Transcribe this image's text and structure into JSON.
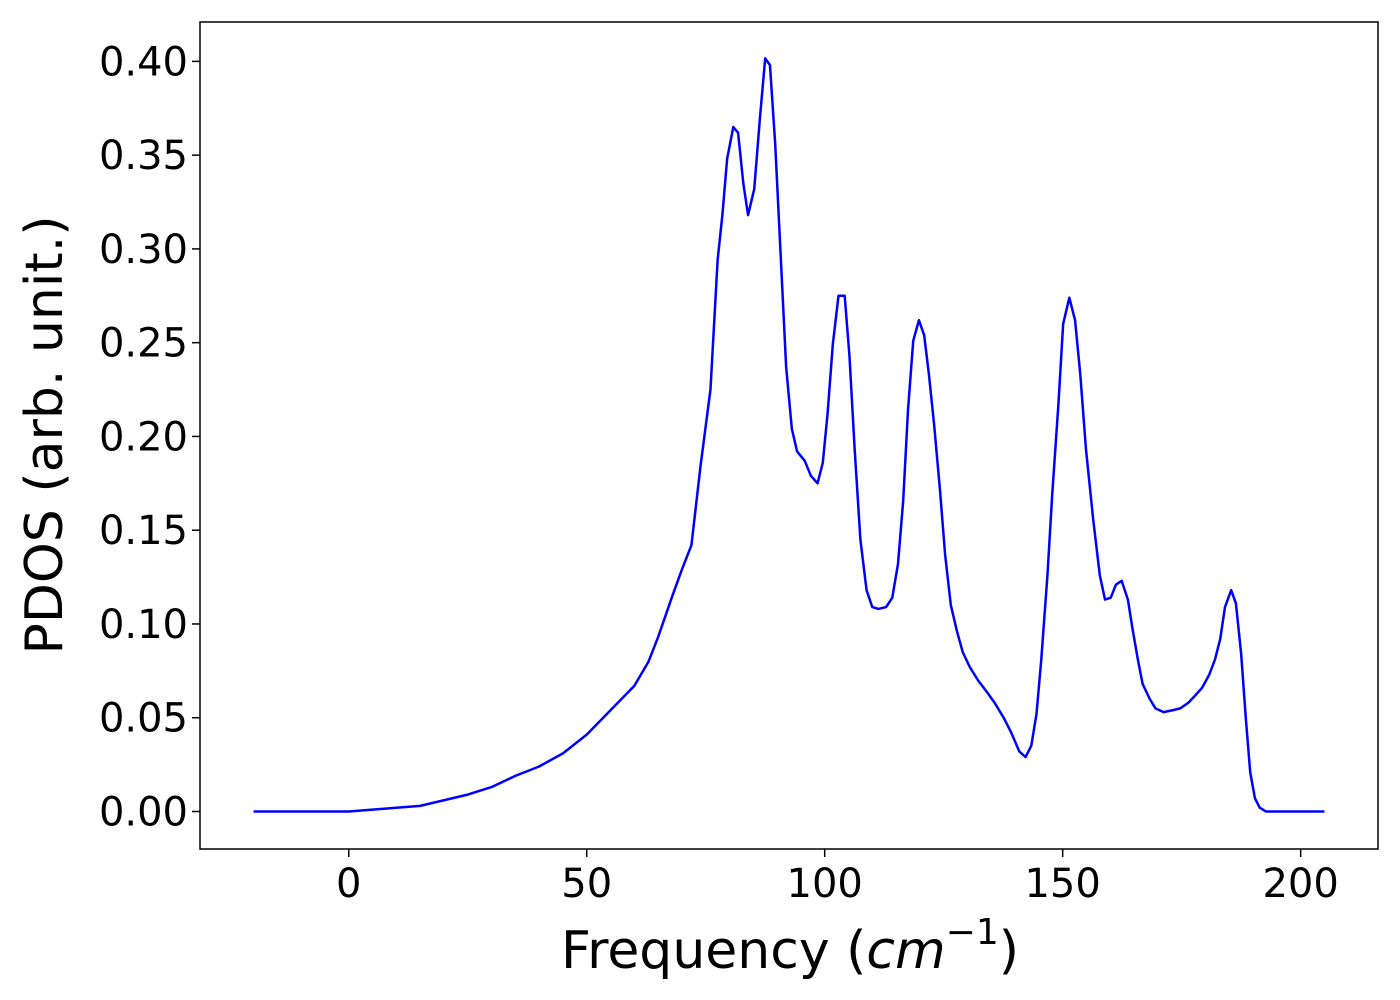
{
  "chart_data": {
    "type": "line",
    "x_label": [
      "Frequency (",
      "cm",
      "−1",
      ")"
    ],
    "y_label": "PDOS (arb. unit.)",
    "x": [
      -20,
      0,
      5,
      10,
      15,
      20,
      25,
      30,
      35,
      40,
      45,
      50,
      55,
      60,
      63,
      65,
      68,
      70,
      72,
      73.9,
      76,
      77.5,
      78.5,
      79.5,
      80.8,
      81.8,
      82.9,
      83.9,
      85.2,
      86.4,
      87.5,
      88.5,
      89.6,
      90.8,
      91.9,
      93.1,
      94.2,
      95.8,
      97.1,
      98.5,
      99.6,
      100.6,
      101.7,
      102.9,
      104.2,
      105.2,
      106.3,
      107.5,
      108.8,
      110,
      111.3,
      112.9,
      114.2,
      115.4,
      116.5,
      117.5,
      118.6,
      119.8,
      120.9,
      121.9,
      123,
      124.2,
      125.3,
      126.5,
      127.8,
      129,
      130.5,
      132.2,
      134,
      135.7,
      137.6,
      139.2,
      140.9,
      142.2,
      143.4,
      144.5,
      145.5,
      146.8,
      147.8,
      149.1,
      150.1,
      151.4,
      152.6,
      153.7,
      154.9,
      156.4,
      157.8,
      158.9,
      160.1,
      161.2,
      162.4,
      163.7,
      164.7,
      165.8,
      166.8,
      168.3,
      169.5,
      171.2,
      173.1,
      174.7,
      176.4,
      177.9,
      179.3,
      180.8,
      182,
      183.1,
      184.1,
      185.4,
      186.4,
      187.5,
      188.5,
      189.4,
      190.4,
      191.4,
      192.7,
      205
    ],
    "series": [
      {
        "name": "PDOS",
        "color": "#0000ff",
        "values": [
          0,
          0,
          0.001,
          0.002,
          0.003,
          0.006,
          0.009,
          0.013,
          0.019,
          0.024,
          0.031,
          0.041,
          0.054,
          0.067,
          0.08,
          0.093,
          0.115,
          0.129,
          0.142,
          0.184,
          0.225,
          0.294,
          0.318,
          0.348,
          0.365,
          0.362,
          0.335,
          0.318,
          0.332,
          0.37,
          0.4016,
          0.398,
          0.356,
          0.294,
          0.237,
          0.204,
          0.192,
          0.187,
          0.179,
          0.175,
          0.186,
          0.212,
          0.249,
          0.275,
          0.275,
          0.243,
          0.193,
          0.145,
          0.118,
          0.109,
          0.108,
          0.109,
          0.114,
          0.132,
          0.166,
          0.214,
          0.251,
          0.262,
          0.254,
          0.233,
          0.206,
          0.172,
          0.137,
          0.11,
          0.096,
          0.085,
          0.077,
          0.07,
          0.064,
          0.058,
          0.05,
          0.042,
          0.032,
          0.029,
          0.035,
          0.052,
          0.081,
          0.126,
          0.169,
          0.217,
          0.26,
          0.274,
          0.262,
          0.233,
          0.193,
          0.156,
          0.126,
          0.113,
          0.114,
          0.121,
          0.123,
          0.113,
          0.097,
          0.081,
          0.068,
          0.06,
          0.055,
          0.053,
          0.054,
          0.055,
          0.058,
          0.062,
          0.066,
          0.073,
          0.081,
          0.092,
          0.109,
          0.118,
          0.111,
          0.084,
          0.049,
          0.021,
          0.007,
          0.002,
          0,
          0
        ]
      }
    ],
    "xlim": [
      -31.25,
      216.25
    ],
    "ylim": [
      -0.02,
      0.421
    ],
    "xticks": [
      0,
      50,
      100,
      150,
      200
    ],
    "yticks": [
      {
        "value": 0,
        "label": "0.00"
      },
      {
        "value": 0.05,
        "label": "0.05"
      },
      {
        "value": 0.1,
        "label": "0.10"
      },
      {
        "value": 0.15,
        "label": "0.15"
      },
      {
        "value": 0.2,
        "label": "0.20"
      },
      {
        "value": 0.25,
        "label": "0.25"
      },
      {
        "value": 0.3,
        "label": "0.30"
      },
      {
        "value": 0.35,
        "label": "0.35"
      },
      {
        "value": 0.4,
        "label": "0.40"
      }
    ],
    "grid": false
  }
}
